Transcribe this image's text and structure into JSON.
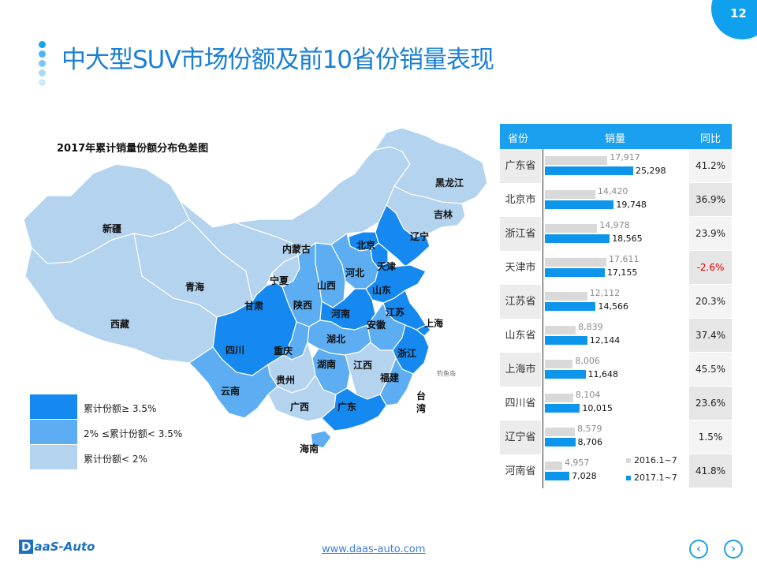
{
  "page": {
    "title": "中大型SUV市场份额及前10省份销量表现",
    "page_number": "12",
    "footer_url": "www.daas-auto.com",
    "logo_prefix": "D",
    "logo_text": "aaS-Auto",
    "nav_prev_icon": "chevron-left-icon",
    "nav_next_icon": "chevron-right-icon",
    "nav_prev_glyph": "‹",
    "nav_next_glyph": "›"
  },
  "colors": {
    "high": "#1689f0",
    "mid": "#5cadf2",
    "low": "#b3d3ef",
    "accent": "#0d95ec",
    "bar2016": "#d9d9d9",
    "negative": "#e00000"
  },
  "map": {
    "title": "2017年累计销量份额分布色差图",
    "legend": [
      {
        "level": "high",
        "label": "累计份额≥ 3.5%"
      },
      {
        "level": "mid",
        "label": "2% ≤累计份额< 3.5%"
      },
      {
        "level": "low",
        "label": "累计份额< 2%"
      }
    ],
    "provinces": [
      {
        "name": "新疆",
        "level": "low"
      },
      {
        "name": "西藏",
        "level": "low"
      },
      {
        "name": "青海",
        "level": "low"
      },
      {
        "name": "甘肃",
        "level": "low"
      },
      {
        "name": "内蒙古",
        "level": "low"
      },
      {
        "name": "黑龙江",
        "level": "low"
      },
      {
        "name": "吉林",
        "level": "low"
      },
      {
        "name": "辽宁",
        "level": "high"
      },
      {
        "name": "北京",
        "level": "high"
      },
      {
        "name": "天津",
        "level": "high"
      },
      {
        "name": "河北",
        "level": "mid"
      },
      {
        "name": "山西",
        "level": "mid"
      },
      {
        "name": "宁夏",
        "level": "low"
      },
      {
        "name": "陕西",
        "level": "mid"
      },
      {
        "name": "山东",
        "level": "high"
      },
      {
        "name": "河南",
        "level": "high"
      },
      {
        "name": "江苏",
        "level": "high"
      },
      {
        "name": "安徽",
        "level": "mid"
      },
      {
        "name": "上海",
        "level": "high"
      },
      {
        "name": "湖北",
        "level": "mid"
      },
      {
        "name": "四川",
        "level": "high"
      },
      {
        "name": "重庆",
        "level": "mid"
      },
      {
        "name": "浙江",
        "level": "high"
      },
      {
        "name": "湖南",
        "level": "mid"
      },
      {
        "name": "江西",
        "level": "low"
      },
      {
        "name": "贵州",
        "level": "low"
      },
      {
        "name": "福建",
        "level": "mid"
      },
      {
        "name": "云南",
        "level": "mid"
      },
      {
        "name": "广西",
        "level": "low"
      },
      {
        "name": "广东",
        "level": "high"
      },
      {
        "name": "台湾",
        "level": "none"
      },
      {
        "name": "海南",
        "level": "mid"
      }
    ],
    "island_label": "钓鱼岛"
  },
  "table": {
    "headers": [
      "省份",
      "销量",
      "同比"
    ],
    "chart_data": {
      "type": "bar",
      "orientation": "horizontal",
      "categories": [
        "广东省",
        "北京市",
        "浙江省",
        "天津市",
        "江苏省",
        "山东省",
        "上海市",
        "四川省",
        "辽宁省",
        "河南省"
      ],
      "series": [
        {
          "name": "2016.1~7",
          "values": [
            17917,
            14420,
            14978,
            17611,
            12112,
            8839,
            8006,
            8104,
            8579,
            4957
          ]
        },
        {
          "name": "2017.1~7",
          "values": [
            25298,
            19748,
            18565,
            17155,
            14566,
            12144,
            11648,
            10015,
            8706,
            7028
          ]
        }
      ],
      "value_labels_2016": [
        "17,917",
        "14,420",
        "14,978",
        "17,611",
        "12,112",
        "8,839",
        "8,006",
        "8,104",
        "8,579",
        "4,957"
      ],
      "value_labels_2017": [
        "25,298",
        "19,748",
        "18,565",
        "17,155",
        "14,566",
        "12,144",
        "11,648",
        "10,015",
        "8,706",
        "7,028"
      ],
      "yoy": [
        "41.2%",
        "36.9%",
        "23.9%",
        "-2.6%",
        "20.3%",
        "37.4%",
        "45.5%",
        "23.6%",
        "1.5%",
        "41.8%"
      ],
      "xlim": [
        0,
        26000
      ],
      "legend_position": "bottom-right"
    }
  }
}
